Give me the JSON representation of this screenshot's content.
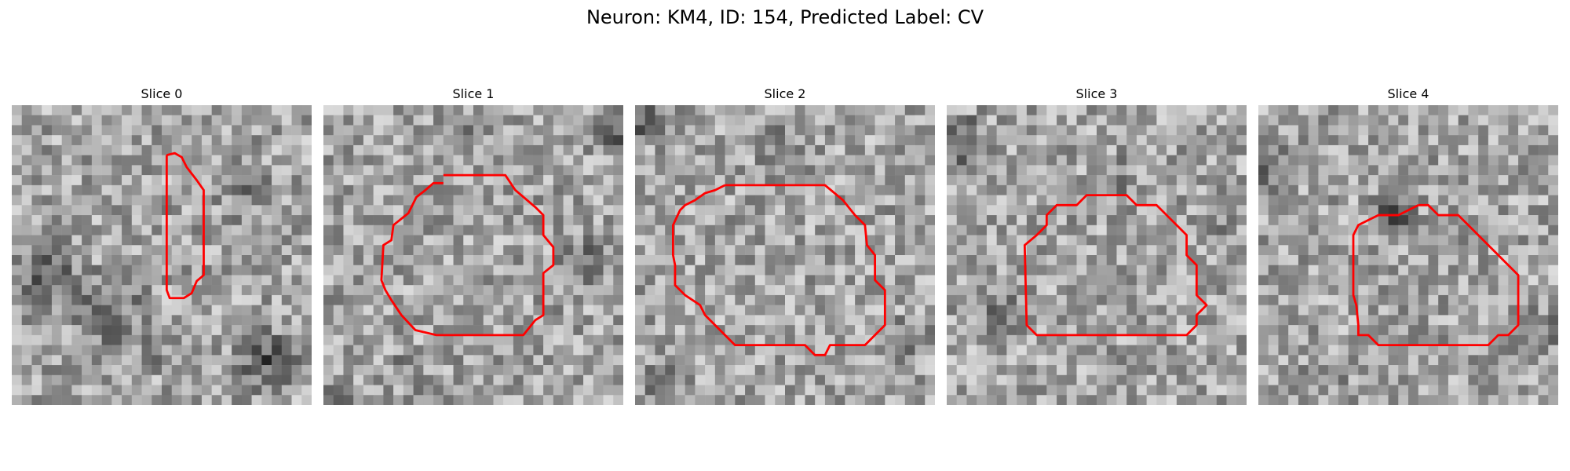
{
  "figure": {
    "title": "Neuron: KM4, ID: 154, Predicted Label: CV"
  },
  "contour_color": "#ff0000",
  "panels": [
    {
      "title": "Slice 0"
    },
    {
      "title": "Slice 1"
    },
    {
      "title": "Slice 2"
    },
    {
      "title": "Slice 3"
    },
    {
      "title": "Slice 4"
    }
  ]
}
